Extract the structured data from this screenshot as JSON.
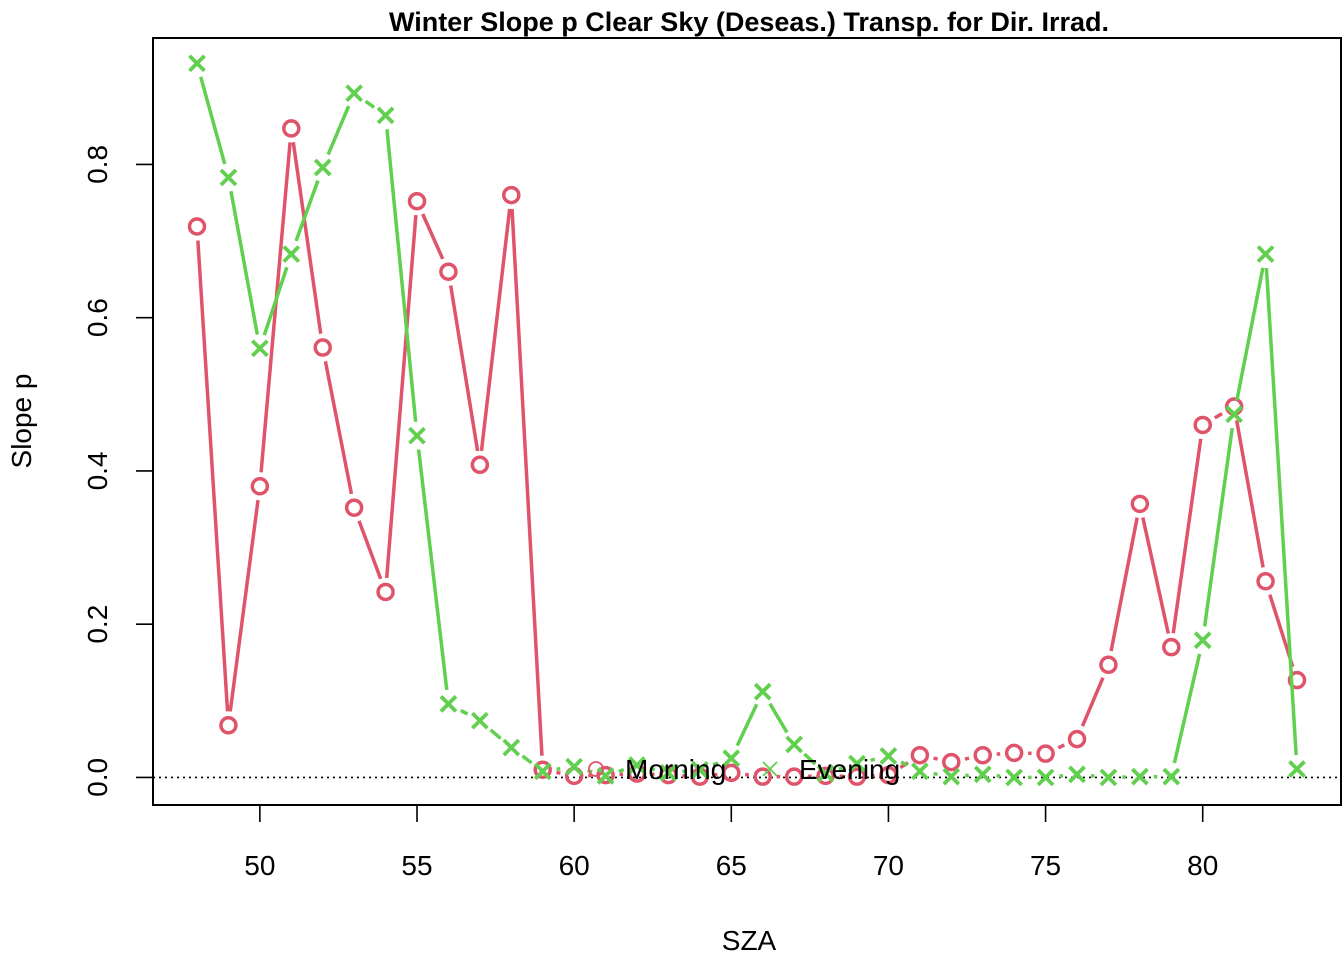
{
  "chart_data": {
    "type": "line",
    "title": "Winter Slope p Clear Sky (Deseas.) Transp. for Dir. Irrad.",
    "xlabel": "SZA",
    "ylabel": "Slope p",
    "xlim": [
      46.6,
      84.4
    ],
    "ylim": [
      -0.036,
      0.965
    ],
    "x_ticks": [
      50,
      55,
      60,
      65,
      70,
      75,
      80
    ],
    "y_ticks": [
      0.0,
      0.2,
      0.4,
      0.6,
      0.8
    ],
    "x_tick_labels": [
      "50",
      "55",
      "60",
      "65",
      "70",
      "75",
      "80"
    ],
    "y_tick_labels": [
      "0.0",
      "0.2",
      "0.4",
      "0.6",
      "0.8"
    ],
    "reference_line": {
      "y": 0,
      "style": "dotted"
    },
    "legend": {
      "placement": "bottom-center",
      "horizontal": true
    },
    "x": [
      48,
      49,
      50,
      51,
      52,
      53,
      54,
      55,
      56,
      57,
      58,
      59,
      60,
      61,
      62,
      63,
      64,
      65,
      66,
      67,
      68,
      69,
      70,
      71,
      72,
      73,
      74,
      75,
      76,
      77,
      78,
      79,
      80,
      81,
      82,
      83
    ],
    "series": [
      {
        "name": "Morning",
        "color": "#DF536B",
        "marker": "circle",
        "values": [
          0.719,
          0.068,
          0.38,
          0.847,
          0.561,
          0.352,
          0.242,
          0.752,
          0.66,
          0.408,
          0.76,
          0.01,
          0.002,
          0.003,
          0.005,
          0.003,
          0.001,
          0.006,
          0.001,
          0.001,
          0.002,
          0.001,
          0.003,
          0.029,
          0.02,
          0.029,
          0.032,
          0.031,
          0.05,
          0.147,
          0.357,
          0.17,
          0.46,
          0.484,
          0.256,
          0.127
        ]
      },
      {
        "name": "Evening",
        "color": "#61D04F",
        "marker": "cross",
        "values": [
          0.932,
          0.783,
          0.56,
          0.683,
          0.796,
          0.893,
          0.864,
          0.446,
          0.096,
          0.074,
          0.039,
          0.008,
          0.014,
          0.002,
          0.016,
          0.006,
          0.01,
          0.025,
          0.112,
          0.043,
          0.005,
          0.018,
          0.028,
          0.008,
          0.001,
          0.004,
          0.0,
          0.0,
          0.004,
          0.0,
          0.001,
          0.001,
          0.179,
          0.474,
          0.683,
          0.011
        ]
      }
    ]
  }
}
